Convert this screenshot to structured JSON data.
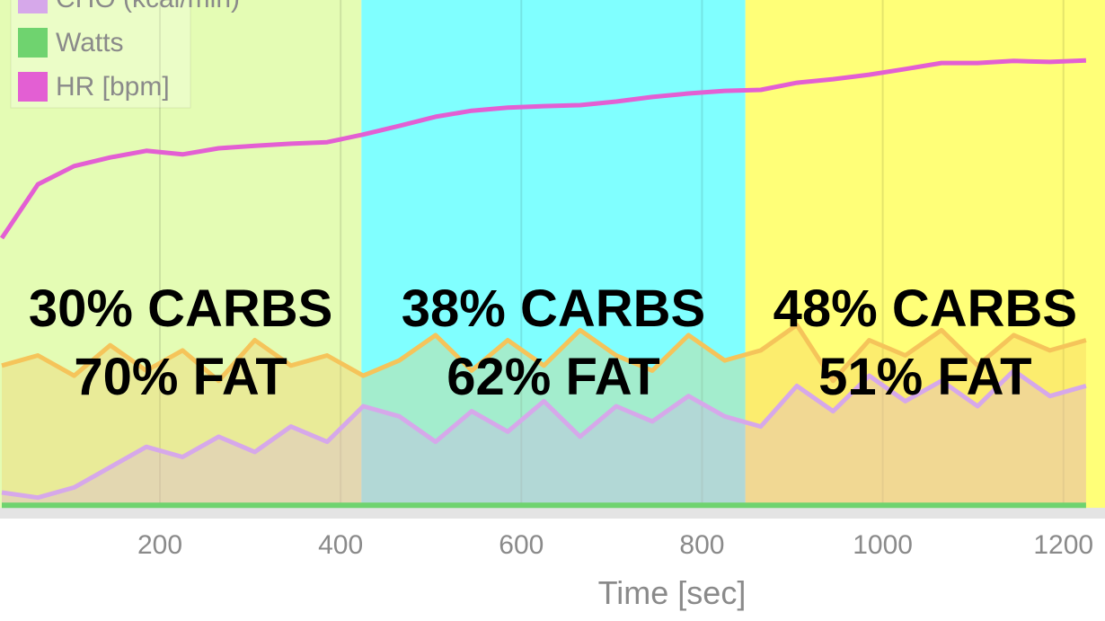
{
  "chart_data": {
    "type": "line",
    "x_label": "Time [sec]",
    "x": [
      25,
      65,
      105,
      145,
      185,
      225,
      265,
      305,
      345,
      385,
      425,
      465,
      505,
      545,
      585,
      625,
      665,
      705,
      745,
      785,
      825,
      865,
      905,
      945,
      985,
      1025,
      1065,
      1105,
      1145,
      1185,
      1225
    ],
    "series": [
      {
        "color": "#f5c45a",
        "values": [
          28,
          30,
          26,
          32,
          27,
          31,
          25,
          33,
          28,
          30,
          26,
          29,
          34,
          27,
          33,
          28,
          35,
          30,
          27,
          34,
          29,
          31,
          36,
          25,
          33,
          30,
          35,
          28,
          34,
          31,
          33
        ]
      },
      {
        "name": "CHO (kcal/min)",
        "color": "#d6a8ea",
        "values": [
          3,
          2,
          4,
          8,
          12,
          10,
          14,
          11,
          16,
          13,
          20,
          18,
          13,
          19,
          15,
          21,
          14,
          20,
          17,
          22,
          18,
          16,
          24,
          19,
          26,
          21,
          25,
          20,
          27,
          22,
          24
        ]
      },
      {
        "name": "Watts",
        "color": "#6fd36f",
        "values": [
          0.5,
          0.5,
          0.5,
          0.5,
          0.5,
          0.5,
          0.5,
          0.5,
          0.5,
          0.5,
          0.5,
          0.5,
          0.5,
          0.5,
          0.5,
          0.5,
          0.5,
          0.5,
          0.5,
          0.5,
          0.5,
          0.5,
          0.5,
          0.5,
          0.5,
          0.5,
          0.5,
          0.5,
          0.5,
          0.5,
          0.5
        ]
      },
      {
        "name": "HR [bpm]",
        "color": "#e35fd3",
        "values": [
          53.1,
          63.7,
          67.3,
          69.0,
          70.3,
          69.6,
          70.8,
          71.3,
          71.7,
          72.0,
          73.5,
          75.2,
          77.0,
          78.2,
          78.8,
          79.1,
          79.3,
          80.0,
          80.9,
          81.6,
          82.1,
          82.3,
          83.7,
          84.4,
          85.3,
          86.4,
          87.6,
          87.6,
          88.0,
          87.8,
          88.1
        ]
      }
    ],
    "zones": [
      {
        "x": [
          23,
          423
        ],
        "color": "#e4fcb4",
        "label": [
          "30% CARBS",
          "70% FAT"
        ]
      },
      {
        "x": [
          423,
          848
        ],
        "color": "#80ffff",
        "label": [
          "38% CARBS",
          "62% FAT"
        ]
      },
      {
        "x": [
          848,
          1246
        ],
        "color": "#ffff78",
        "label": [
          "48% CARBS",
          "51% FAT"
        ]
      }
    ],
    "xlim": [
      23,
      1246
    ],
    "ylim": [
      0,
      100
    ],
    "xticks": [
      200,
      400,
      600,
      800,
      1000,
      1200
    ],
    "grid": true
  }
}
